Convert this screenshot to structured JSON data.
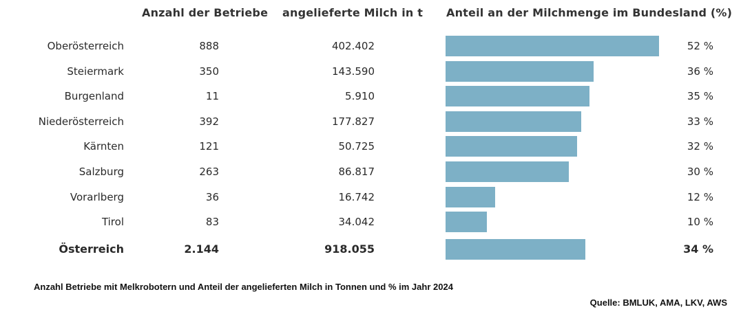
{
  "chart_data": {
    "type": "table",
    "columns": [
      "Anzahl der Betriebe",
      "angelieferte Milch in t",
      "Anteil an der Milchmenge im Bundesland (%)"
    ],
    "rows": [
      {
        "region": "Oberösterreich",
        "betriebe": "888",
        "milch": "402.402",
        "anteil": 52,
        "anteil_label": "52 %"
      },
      {
        "region": "Steiermark",
        "betriebe": "350",
        "milch": "143.590",
        "anteil": 36,
        "anteil_label": "36 %"
      },
      {
        "region": "Burgenland",
        "betriebe": "11",
        "milch": "5.910",
        "anteil": 35,
        "anteil_label": "35 %"
      },
      {
        "region": "Niederösterreich",
        "betriebe": "392",
        "milch": "177.827",
        "anteil": 33,
        "anteil_label": "33 %"
      },
      {
        "region": "Kärnten",
        "betriebe": "121",
        "milch": "50.725",
        "anteil": 32,
        "anteil_label": "32 %"
      },
      {
        "region": "Salzburg",
        "betriebe": "263",
        "milch": "86.817",
        "anteil": 30,
        "anteil_label": "30 %"
      },
      {
        "region": "Vorarlberg",
        "betriebe": "36",
        "milch": "16.742",
        "anteil": 12,
        "anteil_label": "12 %"
      },
      {
        "region": "Tirol",
        "betriebe": "83",
        "milch": "34.042",
        "anteil": 10,
        "anteil_label": "10 %"
      }
    ],
    "total": {
      "region": "Österreich",
      "betriebe": "2.144",
      "milch": "918.055",
      "anteil": 34,
      "anteil_label": "34 %"
    },
    "bar_color": "#7db0c6"
  },
  "caption": "Anzahl Betriebe mit Melkrobotern und Anteil der angelieferten Milch in Tonnen und % im Jahr 2024",
  "source": "Quelle: BMLUK, AMA, LKV, AWS"
}
